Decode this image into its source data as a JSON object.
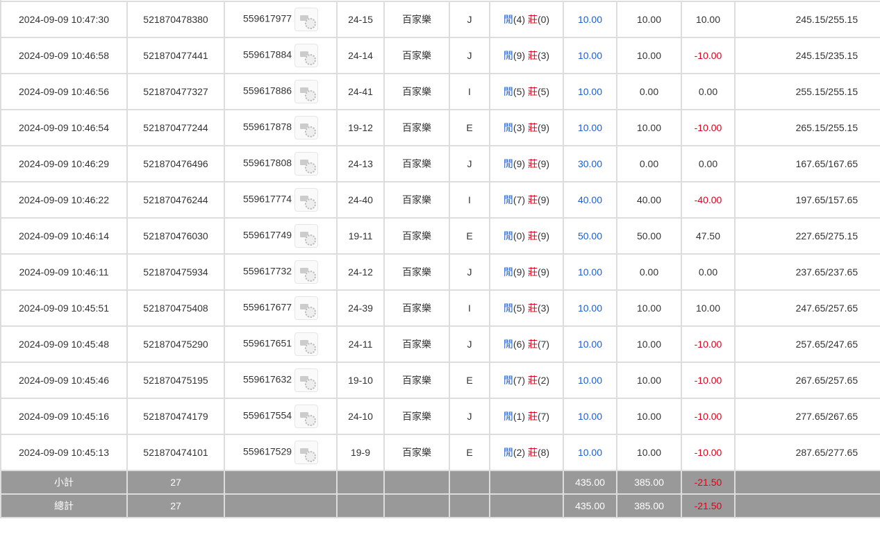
{
  "colors": {
    "player": "#1a5fd6",
    "banker": "#e0001a",
    "negative": "#e0001a",
    "summary_bg": "#999999"
  },
  "labels": {
    "player": "閒",
    "banker": "莊"
  },
  "rows": [
    {
      "time": "2024-09-09 10:47:30",
      "bet_id": "521870478380",
      "round_id": "559617977",
      "table": "24-15",
      "game": "百家樂",
      "result": "J",
      "player": "(4)",
      "banker": "(0)",
      "bet": "10.00",
      "valid": "10.00",
      "win": "10.00",
      "balance": "245.15/255.15"
    },
    {
      "time": "2024-09-09 10:46:58",
      "bet_id": "521870477441",
      "round_id": "559617884",
      "table": "24-14",
      "game": "百家樂",
      "result": "J",
      "player": "(9)",
      "banker": "(3)",
      "bet": "10.00",
      "valid": "10.00",
      "win": "-10.00",
      "balance": "245.15/235.15"
    },
    {
      "time": "2024-09-09 10:46:56",
      "bet_id": "521870477327",
      "round_id": "559617886",
      "table": "24-41",
      "game": "百家樂",
      "result": "I",
      "player": "(5)",
      "banker": "(5)",
      "bet": "10.00",
      "valid": "0.00",
      "win": "0.00",
      "balance": "255.15/255.15"
    },
    {
      "time": "2024-09-09 10:46:54",
      "bet_id": "521870477244",
      "round_id": "559617878",
      "table": "19-12",
      "game": "百家樂",
      "result": "E",
      "player": "(3)",
      "banker": "(9)",
      "bet": "10.00",
      "valid": "10.00",
      "win": "-10.00",
      "balance": "265.15/255.15"
    },
    {
      "time": "2024-09-09 10:46:29",
      "bet_id": "521870476496",
      "round_id": "559617808",
      "table": "24-13",
      "game": "百家樂",
      "result": "J",
      "player": "(9)",
      "banker": "(9)",
      "bet": "30.00",
      "valid": "0.00",
      "win": "0.00",
      "balance": "167.65/167.65"
    },
    {
      "time": "2024-09-09 10:46:22",
      "bet_id": "521870476244",
      "round_id": "559617774",
      "table": "24-40",
      "game": "百家樂",
      "result": "I",
      "player": "(7)",
      "banker": "(9)",
      "bet": "40.00",
      "valid": "40.00",
      "win": "-40.00",
      "balance": "197.65/157.65"
    },
    {
      "time": "2024-09-09 10:46:14",
      "bet_id": "521870476030",
      "round_id": "559617749",
      "table": "19-11",
      "game": "百家樂",
      "result": "E",
      "player": "(0)",
      "banker": "(9)",
      "bet": "50.00",
      "valid": "50.00",
      "win": "47.50",
      "balance": "227.65/275.15"
    },
    {
      "time": "2024-09-09 10:46:11",
      "bet_id": "521870475934",
      "round_id": "559617732",
      "table": "24-12",
      "game": "百家樂",
      "result": "J",
      "player": "(9)",
      "banker": "(9)",
      "bet": "10.00",
      "valid": "0.00",
      "win": "0.00",
      "balance": "237.65/237.65"
    },
    {
      "time": "2024-09-09 10:45:51",
      "bet_id": "521870475408",
      "round_id": "559617677",
      "table": "24-39",
      "game": "百家樂",
      "result": "I",
      "player": "(5)",
      "banker": "(3)",
      "bet": "10.00",
      "valid": "10.00",
      "win": "10.00",
      "balance": "247.65/257.65"
    },
    {
      "time": "2024-09-09 10:45:48",
      "bet_id": "521870475290",
      "round_id": "559617651",
      "table": "24-11",
      "game": "百家樂",
      "result": "J",
      "player": "(6)",
      "banker": "(7)",
      "bet": "10.00",
      "valid": "10.00",
      "win": "-10.00",
      "balance": "257.65/247.65"
    },
    {
      "time": "2024-09-09 10:45:46",
      "bet_id": "521870475195",
      "round_id": "559617632",
      "table": "19-10",
      "game": "百家樂",
      "result": "E",
      "player": "(7)",
      "banker": "(2)",
      "bet": "10.00",
      "valid": "10.00",
      "win": "-10.00",
      "balance": "267.65/257.65"
    },
    {
      "time": "2024-09-09 10:45:16",
      "bet_id": "521870474179",
      "round_id": "559617554",
      "table": "24-10",
      "game": "百家樂",
      "result": "J",
      "player": "(1)",
      "banker": "(7)",
      "bet": "10.00",
      "valid": "10.00",
      "win": "-10.00",
      "balance": "277.65/267.65"
    },
    {
      "time": "2024-09-09 10:45:13",
      "bet_id": "521870474101",
      "round_id": "559617529",
      "table": "19-9",
      "game": "百家樂",
      "result": "E",
      "player": "(2)",
      "banker": "(8)",
      "bet": "10.00",
      "valid": "10.00",
      "win": "-10.00",
      "balance": "287.65/277.65"
    }
  ],
  "subtotal": {
    "label": "小計",
    "count": "27",
    "bet": "435.00",
    "valid": "385.00",
    "win": "-21.50"
  },
  "total": {
    "label": "總計",
    "count": "27",
    "bet": "435.00",
    "valid": "385.00",
    "win": "-21.50"
  }
}
